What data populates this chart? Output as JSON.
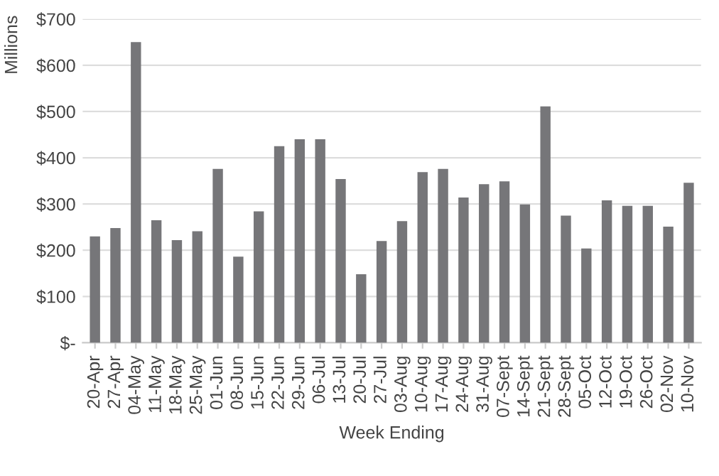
{
  "chart_data": {
    "type": "bar",
    "xlabel": "Week Ending",
    "ylabel": "Millions",
    "categories": [
      "20-Apr",
      "27-Apr",
      "04-May",
      "11-May",
      "18-May",
      "25-May",
      "01-Jun",
      "08-Jun",
      "15-Jun",
      "22-Jun",
      "29-Jun",
      "06-Jul",
      "13-Jul",
      "20-Jul",
      "27-Jul",
      "03-Aug",
      "10-Aug",
      "17-Aug",
      "24-Aug",
      "31-Aug",
      "07-Sept",
      "14-Sept",
      "21-Sept",
      "28-Sept",
      "05-Oct",
      "12-Oct",
      "19-Oct",
      "26-Oct",
      "02-Nov",
      "10-Nov"
    ],
    "values": [
      230,
      248,
      650,
      265,
      222,
      241,
      376,
      186,
      284,
      425,
      440,
      440,
      354,
      148,
      220,
      263,
      369,
      376,
      314,
      343,
      349,
      299,
      511,
      275,
      204,
      308,
      296,
      296,
      251,
      346
    ],
    "color": "#767679",
    "ylim": [
      0,
      700
    ],
    "yticks": [
      {
        "value": 0,
        "label": "$-"
      },
      {
        "value": 100,
        "label": "$100"
      },
      {
        "value": 200,
        "label": "$200"
      },
      {
        "value": 300,
        "label": "$300"
      },
      {
        "value": 400,
        "label": "$400"
      },
      {
        "value": 500,
        "label": "$500"
      },
      {
        "value": 600,
        "label": "$600"
      },
      {
        "value": 700,
        "label": "$700"
      }
    ],
    "grid": "y",
    "legend": false
  }
}
